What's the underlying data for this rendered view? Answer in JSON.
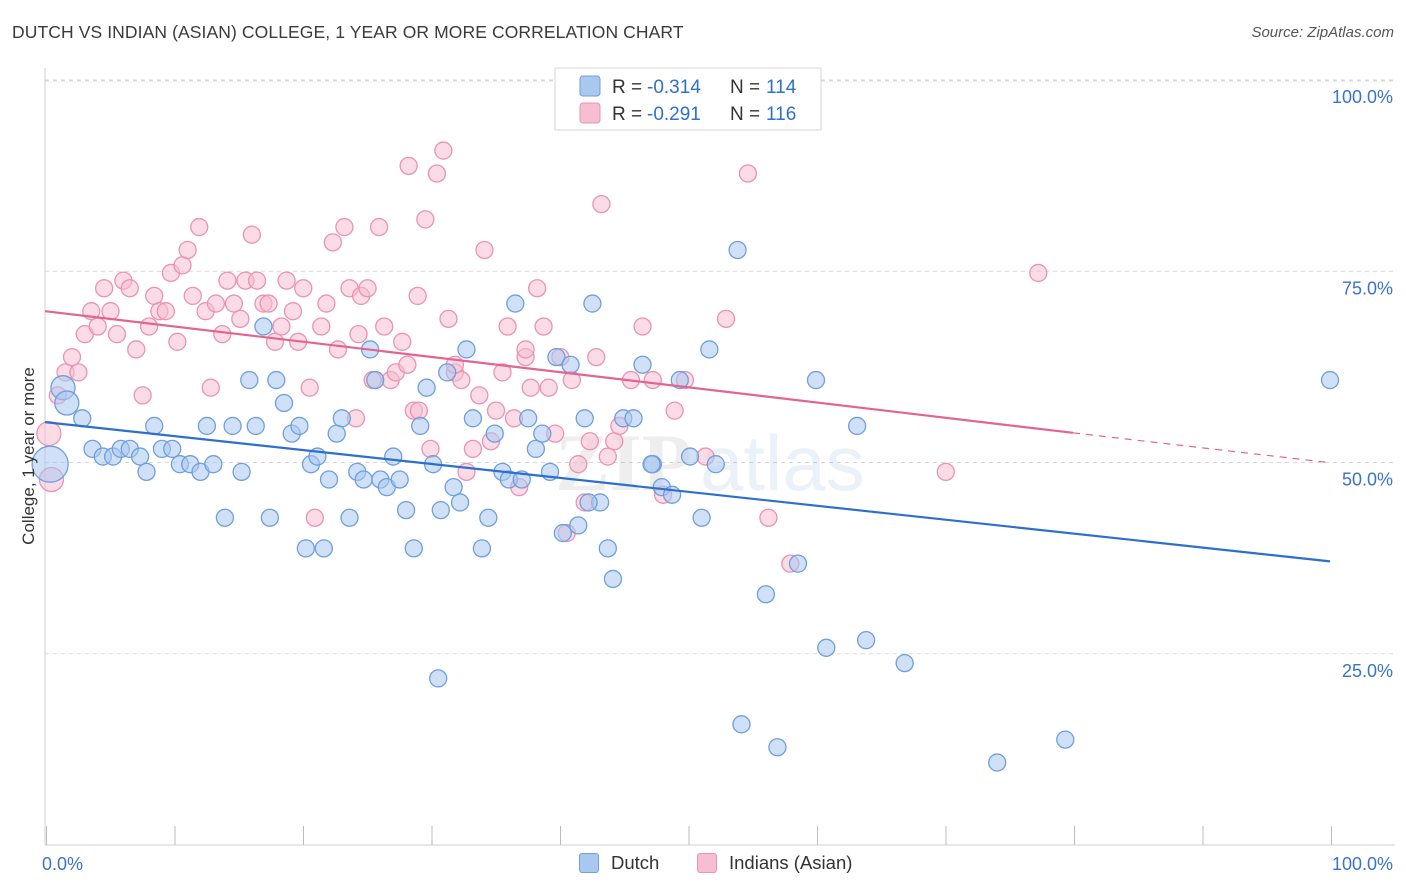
{
  "title": "DUTCH VS INDIAN (ASIAN) COLLEGE, 1 YEAR OR MORE CORRELATION CHART",
  "source": "Source: ZipAtlas.com",
  "watermark": {
    "zip": "ZIP",
    "atlas": "atlas"
  },
  "colors": {
    "dutch_fill": "#a9c8f0",
    "dutch_stroke": "#6f9fdc",
    "dutch_line": "#2d6fce",
    "indian_fill": "#f7bdd0",
    "indian_stroke": "#ea93b2",
    "indian_line": "#e36391",
    "r_value_color": "#2f6fd0",
    "tick_color": "#3a73c9",
    "grid": "#d8d8d8"
  },
  "legend_top": {
    "rows": [
      {
        "r_label": "R =",
        "r_value": "-0.314",
        "n_label": "N =",
        "n_value": "114"
      },
      {
        "r_label": "R =",
        "r_value": "-0.291",
        "n_label": "N =",
        "n_value": "116"
      }
    ]
  },
  "legend_bottom": {
    "dutch": "Dutch",
    "indian": "Indians (Asian)"
  },
  "chart_data": {
    "type": "scatter",
    "xlabel": "",
    "ylabel": "College, 1 year or more",
    "xlim": [
      0,
      100
    ],
    "ylim": [
      0,
      100
    ],
    "x_tick_labels": [
      "0.0%",
      "100.0%"
    ],
    "y_tick_labels": [
      "25.0%",
      "50.0%",
      "75.0%",
      "100.0%"
    ],
    "y_ticks": [
      25,
      50,
      75,
      100
    ],
    "grid": true,
    "legend": "top-center",
    "series": [
      {
        "name": "Dutch",
        "trend": {
          "x0": 0,
          "y0": 57.5,
          "x1": 100,
          "y1": 39.3
        },
        "points": [
          [
            0.4,
            52,
            3
          ],
          [
            1.4,
            62,
            2
          ],
          [
            1.7,
            60,
            2
          ],
          [
            2.9,
            58,
            1
          ],
          [
            3.7,
            54,
            1
          ],
          [
            4.5,
            53,
            1
          ],
          [
            5.3,
            53,
            1
          ],
          [
            5.9,
            54,
            1
          ],
          [
            6.6,
            54,
            1
          ],
          [
            7.4,
            53,
            1
          ],
          [
            7.9,
            51,
            1
          ],
          [
            8.5,
            57,
            1
          ],
          [
            9.1,
            54,
            1
          ],
          [
            9.9,
            54,
            1
          ],
          [
            10.5,
            52,
            1
          ],
          [
            11.3,
            52,
            1
          ],
          [
            12.1,
            51,
            1
          ],
          [
            12.6,
            57,
            1
          ],
          [
            13.1,
            52,
            1
          ],
          [
            14.0,
            45,
            1
          ],
          [
            14.6,
            57,
            1
          ],
          [
            15.3,
            51,
            1
          ],
          [
            15.9,
            63,
            1
          ],
          [
            16.4,
            57,
            1
          ],
          [
            17.0,
            70,
            1
          ],
          [
            17.5,
            45,
            1
          ],
          [
            18.0,
            63,
            1
          ],
          [
            18.6,
            60,
            1
          ],
          [
            19.2,
            56,
            1
          ],
          [
            19.8,
            57,
            1
          ],
          [
            20.3,
            41,
            1
          ],
          [
            20.7,
            52,
            1
          ],
          [
            21.2,
            53,
            1
          ],
          [
            21.7,
            41,
            1
          ],
          [
            22.1,
            50,
            1
          ],
          [
            22.7,
            56,
            1
          ],
          [
            23.1,
            58,
            1
          ],
          [
            23.7,
            45,
            1
          ],
          [
            24.3,
            51,
            1
          ],
          [
            24.8,
            50,
            1
          ],
          [
            25.3,
            67,
            1
          ],
          [
            25.7,
            63,
            1
          ],
          [
            26.1,
            50,
            1
          ],
          [
            26.6,
            49,
            1
          ],
          [
            27.1,
            53,
            1
          ],
          [
            27.6,
            50,
            1
          ],
          [
            28.1,
            46,
            1
          ],
          [
            28.7,
            41,
            1
          ],
          [
            29.2,
            57,
            1
          ],
          [
            29.7,
            62,
            1
          ],
          [
            30.2,
            52,
            1
          ],
          [
            30.8,
            46,
            1
          ],
          [
            31.3,
            64,
            1
          ],
          [
            31.8,
            49,
            1
          ],
          [
            32.3,
            47,
            1
          ],
          [
            32.8,
            67,
            1
          ],
          [
            33.3,
            58,
            1
          ],
          [
            34.0,
            41,
            1
          ],
          [
            34.5,
            45,
            1
          ],
          [
            35.0,
            56,
            1
          ],
          [
            35.6,
            51,
            1
          ],
          [
            36.1,
            50,
            1
          ],
          [
            36.6,
            73,
            1
          ],
          [
            37.1,
            50,
            1
          ],
          [
            37.6,
            58,
            1
          ],
          [
            38.2,
            54,
            1
          ],
          [
            38.7,
            56,
            1
          ],
          [
            39.3,
            51,
            1
          ],
          [
            39.8,
            66,
            1
          ],
          [
            40.3,
            43,
            1
          ],
          [
            40.9,
            65,
            1
          ],
          [
            41.5,
            44,
            1
          ],
          [
            42.0,
            58,
            1
          ],
          [
            42.6,
            73,
            1
          ],
          [
            43.2,
            47,
            1
          ],
          [
            43.8,
            41,
            1
          ],
          [
            44.2,
            37,
            1
          ],
          [
            45.0,
            58,
            1
          ],
          [
            45.8,
            58,
            1
          ],
          [
            46.5,
            65,
            1
          ],
          [
            47.3,
            52,
            1
          ],
          [
            48.0,
            49,
            1
          ],
          [
            48.8,
            48,
            1
          ],
          [
            49.4,
            63,
            1
          ],
          [
            50.2,
            53,
            1
          ],
          [
            51.1,
            45,
            1
          ],
          [
            51.7,
            67,
            1
          ],
          [
            52.2,
            52,
            1
          ],
          [
            53.9,
            80,
            1
          ],
          [
            56.1,
            35,
            1
          ],
          [
            58.6,
            39,
            1
          ],
          [
            60.0,
            63,
            1
          ],
          [
            60.8,
            28,
            1
          ],
          [
            63.2,
            57,
            1
          ],
          [
            63.9,
            29,
            1
          ],
          [
            66.9,
            26,
            1
          ],
          [
            30.6,
            24,
            1
          ],
          [
            54.2,
            18,
            1
          ],
          [
            57.0,
            15,
            1
          ],
          [
            74.1,
            13,
            1
          ],
          [
            79.4,
            16,
            1
          ],
          [
            100.0,
            63,
            1
          ],
          [
            42.3,
            47,
            1
          ],
          [
            47.2,
            52,
            1
          ]
        ]
      },
      {
        "name": "Indians (Asian)",
        "trend": {
          "x0": 0,
          "y0": 72.0,
          "x1": 80,
          "y1": 56.1,
          "dash_x1": 100,
          "dash_y1": 52.2
        },
        "points": [
          [
            0.3,
            56,
            2
          ],
          [
            0.5,
            50,
            2
          ],
          [
            1.0,
            61,
            1
          ],
          [
            1.6,
            64,
            1
          ],
          [
            2.1,
            66,
            1
          ],
          [
            2.6,
            64,
            1
          ],
          [
            3.1,
            69,
            1
          ],
          [
            3.6,
            72,
            1
          ],
          [
            4.1,
            70,
            1
          ],
          [
            4.6,
            75,
            1
          ],
          [
            5.1,
            72,
            1
          ],
          [
            5.6,
            69,
            1
          ],
          [
            6.1,
            76,
            1
          ],
          [
            6.6,
            75,
            1
          ],
          [
            7.1,
            67,
            1
          ],
          [
            7.6,
            61,
            1
          ],
          [
            8.1,
            70,
            1
          ],
          [
            8.5,
            74,
            1
          ],
          [
            8.9,
            72,
            1
          ],
          [
            9.4,
            72,
            1
          ],
          [
            9.8,
            77,
            1
          ],
          [
            10.3,
            68,
            1
          ],
          [
            10.7,
            78,
            1
          ],
          [
            11.1,
            80,
            1
          ],
          [
            11.5,
            74,
            1
          ],
          [
            12.0,
            83,
            1
          ],
          [
            12.5,
            72,
            1
          ],
          [
            12.9,
            62,
            1
          ],
          [
            13.3,
            73,
            1
          ],
          [
            13.8,
            69,
            1
          ],
          [
            14.2,
            76,
            1
          ],
          [
            14.7,
            73,
            1
          ],
          [
            15.2,
            71,
            1
          ],
          [
            15.6,
            76,
            1
          ],
          [
            16.1,
            82,
            1
          ],
          [
            16.5,
            76,
            1
          ],
          [
            17.0,
            73,
            1
          ],
          [
            17.4,
            73,
            1
          ],
          [
            17.9,
            68,
            1
          ],
          [
            18.4,
            70,
            1
          ],
          [
            18.8,
            76,
            1
          ],
          [
            19.3,
            72,
            1
          ],
          [
            19.7,
            68,
            1
          ],
          [
            20.1,
            75,
            1
          ],
          [
            20.6,
            62,
            1
          ],
          [
            21.0,
            45,
            1
          ],
          [
            21.5,
            70,
            1
          ],
          [
            21.9,
            73,
            1
          ],
          [
            22.4,
            81,
            1
          ],
          [
            22.8,
            67,
            1
          ],
          [
            23.3,
            83,
            1
          ],
          [
            23.7,
            75,
            1
          ],
          [
            24.2,
            58,
            1
          ],
          [
            24.6,
            74,
            1
          ],
          [
            25.1,
            75,
            1
          ],
          [
            25.5,
            63,
            1
          ],
          [
            26.0,
            83,
            1
          ],
          [
            26.4,
            70,
            1
          ],
          [
            26.9,
            63,
            1
          ],
          [
            27.3,
            64,
            1
          ],
          [
            27.8,
            68,
            1
          ],
          [
            28.2,
            65,
            1
          ],
          [
            28.7,
            59,
            1
          ],
          [
            29.1,
            59,
            1
          ],
          [
            29.6,
            84,
            1
          ],
          [
            30.0,
            54,
            1
          ],
          [
            30.5,
            90,
            1
          ],
          [
            31.0,
            93,
            1
          ],
          [
            31.4,
            71,
            1
          ],
          [
            31.9,
            64,
            1
          ],
          [
            32.4,
            63,
            1
          ],
          [
            32.8,
            51,
            1
          ],
          [
            33.3,
            54,
            1
          ],
          [
            33.8,
            61,
            1
          ],
          [
            34.2,
            80,
            1
          ],
          [
            34.7,
            55,
            1
          ],
          [
            35.1,
            59,
            1
          ],
          [
            35.6,
            64,
            1
          ],
          [
            36.0,
            70,
            1
          ],
          [
            36.5,
            58,
            1
          ],
          [
            36.9,
            49,
            1
          ],
          [
            37.4,
            66,
            1
          ],
          [
            37.8,
            62,
            1
          ],
          [
            38.3,
            75,
            1
          ],
          [
            38.8,
            70,
            1
          ],
          [
            39.2,
            62,
            1
          ],
          [
            39.7,
            56,
            1
          ],
          [
            40.1,
            66,
            1
          ],
          [
            40.6,
            43,
            1
          ],
          [
            41.0,
            63,
            1
          ],
          [
            41.5,
            52,
            1
          ],
          [
            42.0,
            47,
            1
          ],
          [
            42.4,
            55,
            1
          ],
          [
            42.9,
            66,
            1
          ],
          [
            43.3,
            86,
            1
          ],
          [
            43.8,
            53,
            1
          ],
          [
            44.3,
            55,
            1
          ],
          [
            44.7,
            57,
            1
          ],
          [
            45.6,
            63,
            1
          ],
          [
            46.5,
            70,
            1
          ],
          [
            47.3,
            63,
            1
          ],
          [
            48.1,
            48,
            1
          ],
          [
            49.0,
            59,
            1
          ],
          [
            49.8,
            63,
            1
          ],
          [
            51.4,
            53,
            1
          ],
          [
            53.0,
            71,
            1
          ],
          [
            54.7,
            90,
            1
          ],
          [
            56.3,
            45,
            1
          ],
          [
            58.0,
            39,
            1
          ],
          [
            70.1,
            51,
            1
          ],
          [
            77.3,
            77,
            1
          ],
          [
            28.3,
            91,
            1
          ],
          [
            31.9,
            65,
            1
          ],
          [
            24.4,
            69,
            1
          ],
          [
            29.0,
            74,
            1
          ],
          [
            37.4,
            67,
            1
          ]
        ]
      }
    ]
  }
}
